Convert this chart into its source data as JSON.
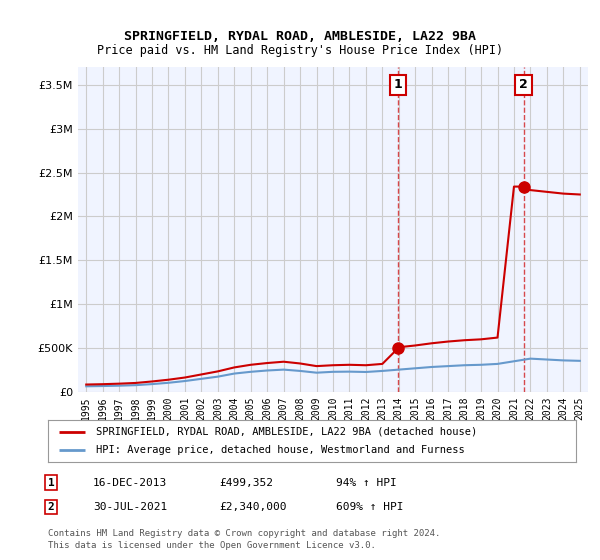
{
  "title": "SPRINGFIELD, RYDAL ROAD, AMBLESIDE, LA22 9BA",
  "subtitle": "Price paid vs. HM Land Registry's House Price Index (HPI)",
  "legend_line1": "SPRINGFIELD, RYDAL ROAD, AMBLESIDE, LA22 9BA (detached house)",
  "legend_line2": "HPI: Average price, detached house, Westmorland and Furness",
  "footnote1": "Contains HM Land Registry data © Crown copyright and database right 2024.",
  "footnote2": "This data is licensed under the Open Government Licence v3.0.",
  "sale1_label": "1",
  "sale1_date": "16-DEC-2013",
  "sale1_price": "£499,352",
  "sale1_hpi": "94% ↑ HPI",
  "sale2_label": "2",
  "sale2_date": "30-JUL-2021",
  "sale2_price": "£2,340,000",
  "sale2_hpi": "609% ↑ HPI",
  "sale1_x": 2013.96,
  "sale1_y": 499352,
  "sale2_x": 2021.58,
  "sale2_y": 2340000,
  "ylim": [
    0,
    3700000
  ],
  "xlim": [
    1994.5,
    2025.5
  ],
  "red_color": "#cc0000",
  "blue_color": "#6699cc",
  "bg_plot": "#f0f4ff",
  "bg_fig": "#ffffff",
  "grid_color": "#cccccc",
  "hpi_years": [
    1995,
    1996,
    1997,
    1998,
    1999,
    2000,
    2001,
    2002,
    2003,
    2004,
    2005,
    2006,
    2007,
    2008,
    2009,
    2010,
    2011,
    2012,
    2013,
    2014,
    2015,
    2016,
    2017,
    2018,
    2019,
    2020,
    2021,
    2022,
    2023,
    2024,
    2025
  ],
  "hpi_values": [
    65000,
    68000,
    72000,
    78000,
    90000,
    105000,
    125000,
    150000,
    175000,
    210000,
    230000,
    245000,
    255000,
    240000,
    220000,
    230000,
    232000,
    228000,
    240000,
    255000,
    270000,
    285000,
    295000,
    305000,
    310000,
    320000,
    350000,
    380000,
    370000,
    360000,
    355000
  ],
  "red_years": [
    1995,
    1996,
    1997,
    1998,
    1999,
    2000,
    2001,
    2002,
    2003,
    2004,
    2005,
    2006,
    2007,
    2008,
    2009,
    2010,
    2011,
    2012,
    2013,
    2013.96,
    2014,
    2015,
    2016,
    2017,
    2018,
    2019,
    2020,
    2021,
    2021.58,
    2022,
    2023,
    2024,
    2025
  ],
  "red_values": [
    85000,
    89000,
    95000,
    103000,
    120000,
    140000,
    165000,
    200000,
    235000,
    280000,
    310000,
    330000,
    345000,
    325000,
    295000,
    305000,
    310000,
    305000,
    320000,
    499352,
    510000,
    530000,
    555000,
    575000,
    590000,
    600000,
    620000,
    2340000,
    2340000,
    2300000,
    2280000,
    2260000,
    2250000
  ]
}
